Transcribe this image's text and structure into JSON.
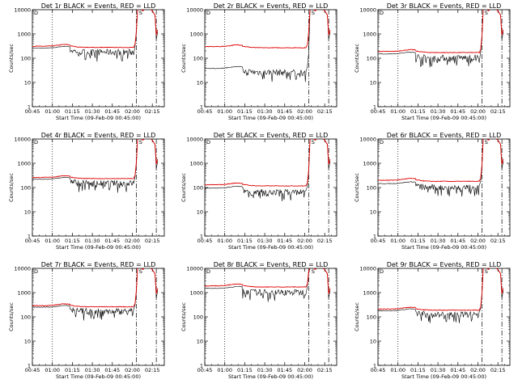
{
  "figure": {
    "panels": [
      {
        "title": "Det 1r BLACK = Events, RED = LLD",
        "events_base": 260,
        "lld_base": 310,
        "noisy": true
      },
      {
        "title": "Det 2r BLACK = Events, RED = LLD",
        "events_base": 38,
        "lld_base": 300,
        "noisy": true
      },
      {
        "title": "Det 3r BLACK = Events, RED = LLD",
        "events_base": 150,
        "lld_base": 190,
        "noisy": true
      },
      {
        "title": "Det 4r BLACK = Events, RED = LLD",
        "events_base": 220,
        "lld_base": 260,
        "noisy": true
      },
      {
        "title": "Det 5r BLACK = Events, RED = LLD",
        "events_base": 95,
        "lld_base": 130,
        "noisy": true
      },
      {
        "title": "Det 6r BLACK = Events, RED = LLD",
        "events_base": 145,
        "lld_base": 200,
        "noisy": true
      },
      {
        "title": "Det 7r BLACK = Events, RED = LLD",
        "events_base": 250,
        "lld_base": 290,
        "noisy": true
      },
      {
        "title": "Det 8r BLACK = Events, RED = LLD",
        "events_base": 1500,
        "lld_base": 1900,
        "noisy": true
      },
      {
        "title": "Det 9r BLACK = Events, RED = LLD",
        "events_base": 180,
        "lld_base": 210,
        "noisy": true
      }
    ],
    "x_ticks": [
      "00:45",
      "01:00",
      "01:15",
      "01:30",
      "01:45",
      "02:00",
      "02:15"
    ],
    "y_ticks": [
      "1",
      "10",
      "100",
      "1000",
      "10000"
    ],
    "xlabel": "Start Time (09-Feb-09 00:45:00)",
    "ylabel": "Counts/sec",
    "marker_d": "D",
    "marker_s": "S"
  },
  "colors": {
    "events": "#000000",
    "lld": "#e00000",
    "axes": "#000000"
  },
  "chart_data": {
    "type": "line",
    "x_unit": "minutes since 00:45 on 09-Feb-09",
    "xlim": [
      0,
      99
    ],
    "ylim": [
      1,
      10000
    ],
    "y_scale": "log",
    "grid": false,
    "legend": "in title",
    "vertical_markers": [
      {
        "x": 15,
        "style": "dotted"
      },
      {
        "x": 78,
        "style": "dash-dot"
      },
      {
        "x": 93,
        "style": "dash-dot"
      }
    ],
    "series": [
      {
        "name": "Events",
        "color": "#000000"
      },
      {
        "name": "LLD",
        "color": "#e00000"
      }
    ]
  }
}
